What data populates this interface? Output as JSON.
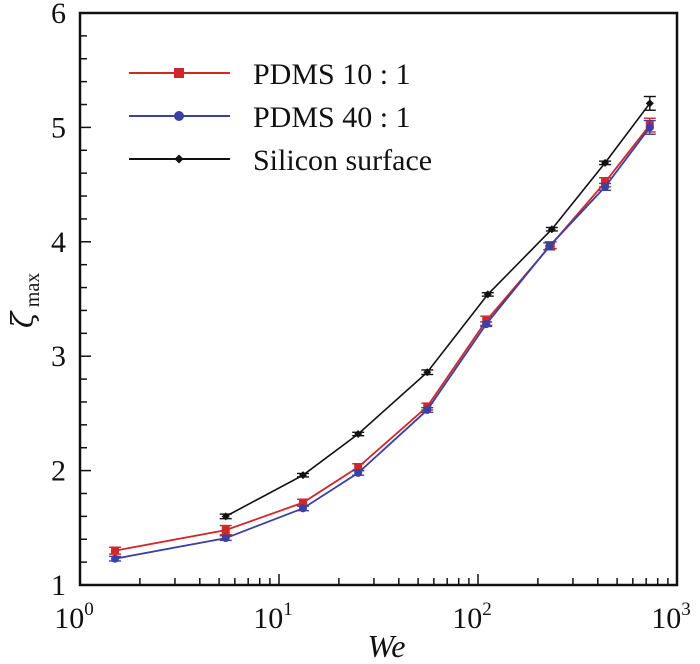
{
  "chart_data": {
    "type": "line",
    "title": "",
    "xlabel": "We",
    "ylabel": "ζ",
    "ylabel_subscript": "max",
    "xscale": "log",
    "xlim": [
      1,
      1000
    ],
    "ylim": [
      1,
      6
    ],
    "x_ticks": [
      {
        "value": 1,
        "base": "10",
        "exp": "0"
      },
      {
        "value": 10,
        "base": "10",
        "exp": "1"
      },
      {
        "value": 100,
        "base": "10",
        "exp": "2"
      },
      {
        "value": 1000,
        "base": "10",
        "exp": "3"
      }
    ],
    "y_ticks": [
      {
        "value": 1,
        "label": "1"
      },
      {
        "value": 2,
        "label": "2"
      },
      {
        "value": 3,
        "label": "3"
      },
      {
        "value": 4,
        "label": "4"
      },
      {
        "value": 5,
        "label": "5"
      },
      {
        "value": 6,
        "label": "6"
      }
    ],
    "y_minor_step": 0.2,
    "grid": false,
    "legend_position": "top-left",
    "series": [
      {
        "name": "PDMS  10∶ 1",
        "label": "PDMS  10 : 1",
        "color": "#d1262a",
        "marker": "square",
        "x": [
          1.5,
          5.4,
          13.2,
          25,
          55.6,
          110,
          232,
          435,
          730
        ],
        "y": [
          1.3,
          1.48,
          1.72,
          2.03,
          2.56,
          3.31,
          3.97,
          4.52,
          5.02
        ],
        "err": [
          0.03,
          0.04,
          0.03,
          0.03,
          0.03,
          0.04,
          0.03,
          0.04,
          0.06
        ]
      },
      {
        "name": "PDMS  40∶ 1",
        "label": "PDMS  40 : 1",
        "color": "#3a41a0",
        "marker": "circle",
        "x": [
          1.5,
          5.4,
          13.2,
          25,
          55.6,
          110,
          228,
          435,
          730
        ],
        "y": [
          1.23,
          1.41,
          1.67,
          1.98,
          2.53,
          3.28,
          3.96,
          4.48,
          5.0
        ],
        "err": [
          0.02,
          0.02,
          0.02,
          0.02,
          0.02,
          0.02,
          0.03,
          0.03,
          0.06
        ]
      },
      {
        "name": "Silicon surface",
        "label": "Silicon surface",
        "color": "#111111",
        "marker": "diamond",
        "x": [
          5.4,
          13.2,
          25,
          55.6,
          112,
          235,
          435,
          730
        ],
        "y": [
          1.6,
          1.96,
          2.32,
          2.86,
          3.54,
          4.11,
          4.69,
          5.21
        ],
        "err": [
          0.02,
          0.015,
          0.015,
          0.02,
          0.015,
          0.015,
          0.015,
          0.06
        ]
      }
    ]
  }
}
